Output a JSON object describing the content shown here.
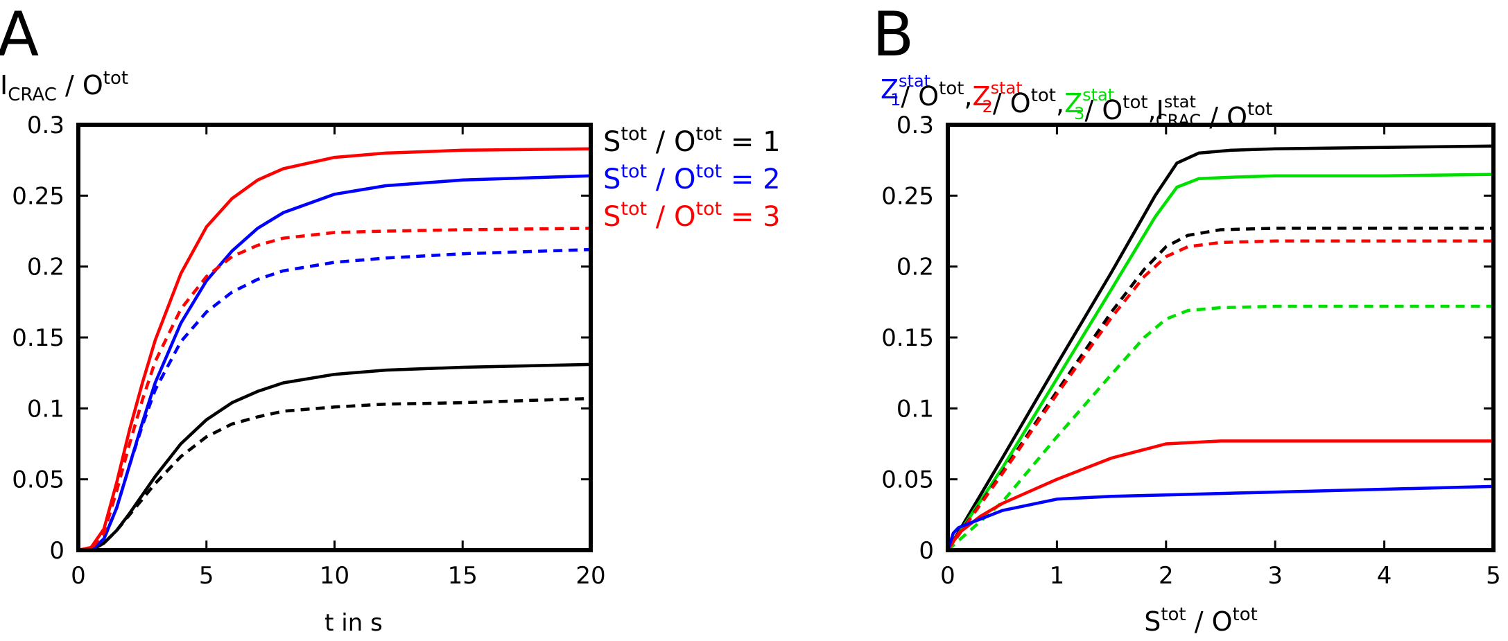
{
  "colors": {
    "black": "#000000",
    "blue": "#0000ff",
    "red": "#ff0000",
    "green": "#00e000"
  },
  "chart_data": [
    {
      "panel": "A",
      "type": "line",
      "panel_label": "A",
      "title": "",
      "ylabel": {
        "base": "I",
        "sub": "CRAC",
        "mid": " / O",
        "sup": "tot"
      },
      "xlabel": "t in s",
      "xlim": [
        0,
        20
      ],
      "ylim": [
        0,
        0.3
      ],
      "xticks": [
        "0",
        "5",
        "10",
        "15",
        "20"
      ],
      "yticks": [
        "0",
        "0.05",
        "0.1",
        "0.15",
        "0.2",
        "0.25",
        "0.3"
      ],
      "legend_position": "right-outside",
      "legend": [
        {
          "base1": "S",
          "sup1": "tot",
          "mid": " / O",
          "sup2": "tot",
          "rest": " = 1",
          "color": "black"
        },
        {
          "base1": "S",
          "sup1": "tot",
          "mid": " / O",
          "sup2": "tot",
          "rest": " = 2",
          "color": "blue"
        },
        {
          "base1": "S",
          "sup1": "tot",
          "mid": " / O",
          "sup2": "tot",
          "rest": " = 3",
          "color": "red"
        }
      ],
      "series": [
        {
          "name": "S/O=1 solid",
          "color": "black",
          "dash": false,
          "x": [
            0,
            0.5,
            1,
            1.5,
            2,
            2.5,
            3,
            4,
            5,
            6,
            7,
            8,
            10,
            12,
            15,
            20
          ],
          "y": [
            0,
            0,
            0.005,
            0.014,
            0.026,
            0.039,
            0.052,
            0.075,
            0.092,
            0.104,
            0.112,
            0.118,
            0.124,
            0.127,
            0.129,
            0.131
          ]
        },
        {
          "name": "S/O=1 dashed",
          "color": "black",
          "dash": true,
          "x": [
            0,
            0.5,
            1,
            1.5,
            2,
            2.5,
            3,
            4,
            5,
            6,
            7,
            8,
            10,
            12,
            15,
            20
          ],
          "y": [
            0,
            0,
            0.005,
            0.014,
            0.025,
            0.036,
            0.047,
            0.066,
            0.08,
            0.089,
            0.094,
            0.098,
            0.101,
            0.103,
            0.104,
            0.107
          ]
        },
        {
          "name": "S/O=2 solid",
          "color": "blue",
          "dash": false,
          "x": [
            0,
            0.5,
            1,
            1.5,
            2,
            2.5,
            3,
            4,
            5,
            6,
            7,
            8,
            10,
            12,
            15,
            20
          ],
          "y": [
            0,
            0,
            0.008,
            0.03,
            0.06,
            0.09,
            0.118,
            0.16,
            0.19,
            0.211,
            0.227,
            0.238,
            0.251,
            0.257,
            0.261,
            0.264
          ]
        },
        {
          "name": "S/O=2 dashed",
          "color": "blue",
          "dash": true,
          "x": [
            0,
            0.5,
            1,
            1.5,
            2,
            2.5,
            3,
            4,
            5,
            6,
            7,
            8,
            10,
            12,
            15,
            20
          ],
          "y": [
            0,
            0,
            0.008,
            0.03,
            0.06,
            0.088,
            0.113,
            0.147,
            0.168,
            0.182,
            0.191,
            0.197,
            0.203,
            0.206,
            0.209,
            0.212
          ]
        },
        {
          "name": "S/O=3 solid",
          "color": "red",
          "dash": false,
          "x": [
            0,
            0.5,
            1,
            1.5,
            2,
            2.5,
            3,
            4,
            5,
            6,
            7,
            8,
            10,
            12,
            15,
            20
          ],
          "y": [
            0,
            0.002,
            0.015,
            0.048,
            0.085,
            0.118,
            0.148,
            0.195,
            0.228,
            0.248,
            0.261,
            0.269,
            0.277,
            0.28,
            0.282,
            0.283
          ]
        },
        {
          "name": "S/O=3 dashed",
          "color": "red",
          "dash": true,
          "x": [
            0,
            0.5,
            1,
            1.5,
            2,
            2.5,
            3,
            4,
            5,
            6,
            7,
            8,
            10,
            12,
            15,
            20
          ],
          "y": [
            0,
            0.001,
            0.012,
            0.042,
            0.075,
            0.106,
            0.133,
            0.17,
            0.193,
            0.207,
            0.215,
            0.22,
            0.224,
            0.225,
            0.226,
            0.227
          ]
        }
      ]
    },
    {
      "panel": "B",
      "type": "line",
      "panel_label": "B",
      "title": "",
      "ylabel_parts": [
        {
          "base": "Z",
          "sub": "1",
          "sup": "stat",
          "color": "blue"
        },
        {
          "text": "/ O",
          "sup": "tot",
          "tail": ",",
          "color": "black"
        },
        {
          "base": "Z",
          "sub": "2",
          "sup": "stat",
          "color": "red"
        },
        {
          "text": "/ O",
          "sup": "tot",
          "tail": ",",
          "color": "black"
        },
        {
          "base": "Z",
          "sub": "3",
          "sup": "stat",
          "color": "green"
        },
        {
          "text": "/ O",
          "sup": "tot",
          "tail": ",",
          "color": "black"
        },
        {
          "base": "I",
          "sub": "CRAC",
          "sup": "stat",
          "color": "black"
        },
        {
          "text": " / O",
          "sup": "tot",
          "tail": "",
          "color": "black"
        }
      ],
      "xlabel": {
        "base1": "S",
        "sup1": "tot",
        "mid": " / O",
        "sup2": "tot"
      },
      "xlim": [
        0,
        5
      ],
      "ylim": [
        0,
        0.3
      ],
      "xticks": [
        "0",
        "1",
        "2",
        "3",
        "4",
        "5"
      ],
      "yticks": [
        "0",
        "0.05",
        "0.1",
        "0.15",
        "0.2",
        "0.25",
        "0.3"
      ],
      "series": [
        {
          "name": "I_CRAC solid",
          "color": "black",
          "dash": false,
          "x": [
            0,
            0.5,
            1,
            1.5,
            1.9,
            2.1,
            2.3,
            2.6,
            3,
            4,
            5
          ],
          "y": [
            0,
            0.065,
            0.131,
            0.196,
            0.25,
            0.273,
            0.28,
            0.282,
            0.283,
            0.284,
            0.285
          ]
        },
        {
          "name": "Z3 solid",
          "color": "green",
          "dash": false,
          "x": [
            0,
            0.5,
            1,
            1.5,
            1.9,
            2.1,
            2.3,
            2.6,
            3,
            4,
            5
          ],
          "y": [
            0,
            0.058,
            0.121,
            0.184,
            0.235,
            0.256,
            0.262,
            0.263,
            0.264,
            0.264,
            0.265
          ]
        },
        {
          "name": "I_CRAC dashed",
          "color": "black",
          "dash": true,
          "x": [
            0,
            0.5,
            1,
            1.5,
            1.8,
            2.0,
            2.2,
            2.5,
            3,
            4,
            5
          ],
          "y": [
            0,
            0.055,
            0.112,
            0.168,
            0.198,
            0.214,
            0.222,
            0.226,
            0.227,
            0.227,
            0.227
          ]
        },
        {
          "name": "Z2 dashed",
          "color": "red",
          "dash": true,
          "x": [
            0,
            0.5,
            1,
            1.5,
            1.8,
            2.0,
            2.2,
            2.5,
            3,
            4,
            5
          ],
          "y": [
            0,
            0.054,
            0.11,
            0.164,
            0.193,
            0.207,
            0.214,
            0.217,
            0.218,
            0.218,
            0.218
          ]
        },
        {
          "name": "Z3 dashed",
          "color": "green",
          "dash": true,
          "x": [
            0,
            0.5,
            1,
            1.5,
            1.8,
            2.0,
            2.2,
            2.5,
            3,
            4,
            5
          ],
          "y": [
            0,
            0.034,
            0.08,
            0.124,
            0.15,
            0.163,
            0.169,
            0.171,
            0.172,
            0.172,
            0.172
          ]
        },
        {
          "name": "Z2 solid",
          "color": "red",
          "dash": false,
          "x": [
            0,
            0.1,
            0.3,
            0.5,
            1,
            1.5,
            2,
            2.5,
            3,
            4,
            5
          ],
          "y": [
            0,
            0.012,
            0.024,
            0.033,
            0.05,
            0.065,
            0.075,
            0.077,
            0.077,
            0.077,
            0.077
          ]
        },
        {
          "name": "Z1 solid",
          "color": "blue",
          "dash": false,
          "x": [
            0,
            0.05,
            0.1,
            0.3,
            0.5,
            1,
            1.5,
            2,
            2.5,
            3,
            4,
            5
          ],
          "y": [
            0,
            0.012,
            0.016,
            0.022,
            0.028,
            0.036,
            0.038,
            0.039,
            0.04,
            0.041,
            0.043,
            0.045
          ]
        }
      ]
    }
  ]
}
